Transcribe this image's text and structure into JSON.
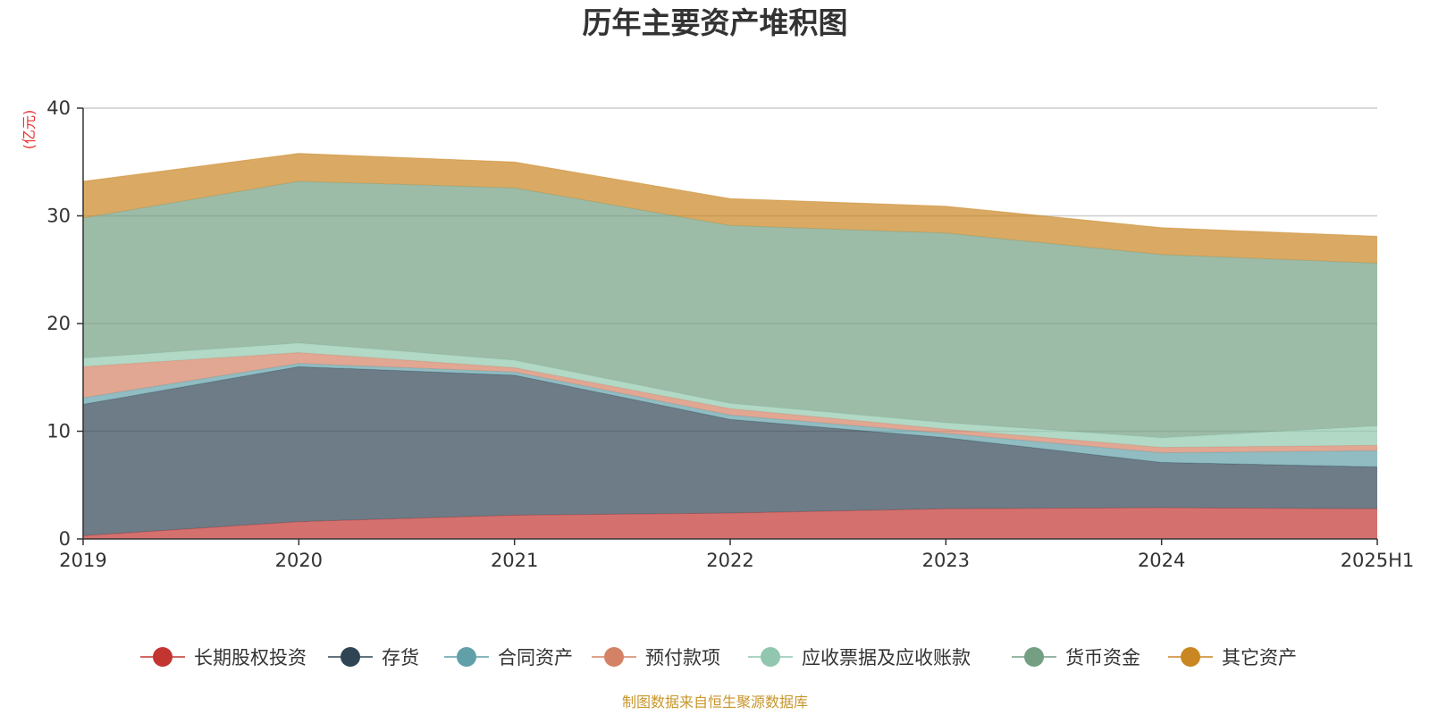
{
  "chart_data": {
    "type": "area",
    "stacked": true,
    "title": "历年主要资产堆积图",
    "unit_label": "(亿元)",
    "source_note": "制图数据来自恒生聚源数据库",
    "xlabel": "",
    "ylabel": "",
    "categories": [
      "2019",
      "2020",
      "2021",
      "2022",
      "2023",
      "2024",
      "2025H1"
    ],
    "ylim": [
      0,
      40
    ],
    "yticks": [
      0,
      10,
      20,
      30,
      40
    ],
    "grid": true,
    "legend_position": "bottom",
    "series": [
      {
        "name": "长期股权投资",
        "color": "#c23531",
        "values": [
          0.3,
          1.6,
          2.2,
          2.4,
          2.8,
          2.9,
          2.8
        ]
      },
      {
        "name": "存货",
        "color": "#2f4554",
        "values": [
          12.2,
          14.4,
          13.0,
          8.7,
          6.6,
          4.2,
          3.9
        ]
      },
      {
        "name": "合同资产",
        "color": "#61a0a8",
        "values": [
          0.6,
          0.3,
          0.3,
          0.4,
          0.4,
          0.9,
          1.5
        ]
      },
      {
        "name": "预付款项",
        "color": "#d48265",
        "values": [
          2.9,
          1.0,
          0.4,
          0.6,
          0.4,
          0.5,
          0.5
        ]
      },
      {
        "name": "应收票据及应收账款",
        "color": "#91c7ae",
        "values": [
          0.8,
          0.9,
          0.7,
          0.5,
          0.6,
          0.9,
          1.8
        ]
      },
      {
        "name": "货币资金",
        "color": "#749f83",
        "values": [
          13.0,
          15.0,
          16.0,
          16.5,
          17.6,
          17.0,
          15.1
        ]
      },
      {
        "name": "其它资产",
        "color": "#ca8622",
        "values": [
          3.4,
          2.6,
          2.4,
          2.5,
          2.5,
          2.5,
          2.5
        ]
      }
    ]
  }
}
